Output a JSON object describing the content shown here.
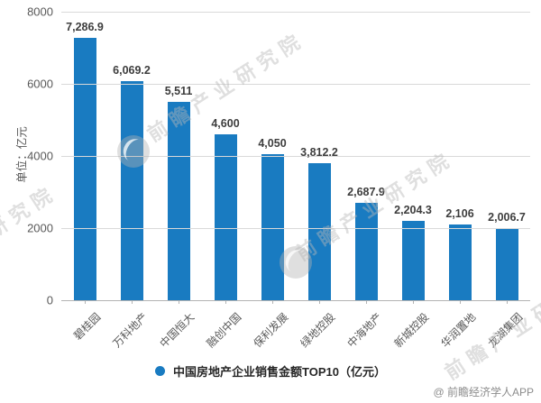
{
  "chart_data": {
    "type": "bar",
    "title": "",
    "legend": "中国房地产企业销售金额TOP10（亿元）",
    "xlabel": "",
    "ylabel": "单位：亿元",
    "categories": [
      "碧桂园",
      "万科地产",
      "中国恒大",
      "融创中国",
      "保利发展",
      "绿地控股",
      "中海地产",
      "新城控股",
      "华润置地",
      "龙湖集团"
    ],
    "values": [
      7286.9,
      6069.2,
      5511,
      4600,
      4050,
      3812.2,
      2687.9,
      2204.3,
      2106,
      2006.7
    ],
    "value_labels": [
      "7,286.9",
      "6,069.2",
      "5,511",
      "4,600",
      "4,050",
      "3,812.2",
      "2,687.9",
      "2,204.3",
      "2,106",
      "2,006.7"
    ],
    "ylim": [
      0,
      8000
    ],
    "y_ticks": [
      8000,
      6000,
      4000,
      2000,
      0
    ],
    "grid": true,
    "legend_position": "bottom",
    "bar_color": "#197BC1"
  },
  "watermark": {
    "text": "前瞻产业研究院"
  },
  "footer": {
    "credit": "@ 前瞻经济学人APP"
  }
}
